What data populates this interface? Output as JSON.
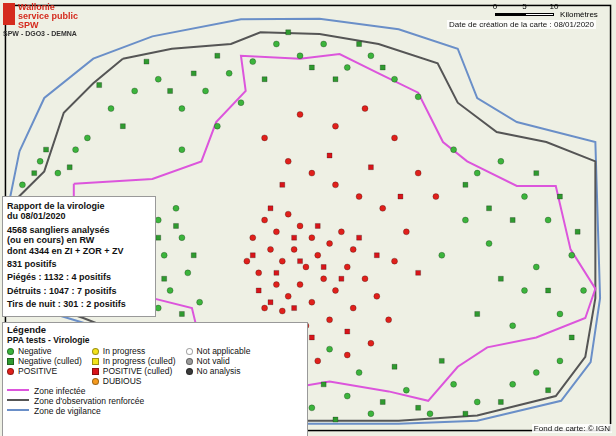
{
  "header": {
    "logo": [
      "Wallonie",
      "service public",
      "SPW"
    ],
    "department": "SPW - DGO3 - DEMNA",
    "date": "Date de création de la carte : 08/01/2020",
    "credit": "Fond de carte: © IGN"
  },
  "scale_bar": {
    "ticks": [
      0,
      5,
      10
    ],
    "unit": "Kilomètres"
  },
  "report": [
    [
      "Rapport de la virologie",
      "du 08/01/2020"
    ],
    [
      "4568 sangliers analysés",
      "(ou en cours) en RW",
      "dont 4344 en ZI + ZOR + ZV"
    ],
    [
      "831 positifs"
    ],
    [
      "Piégés : 1132 : 4 positifs"
    ],
    [
      "Détruits : 1047 : 7 positifs"
    ],
    [
      "Tirs de nuit : 301 : 2 positifs"
    ]
  ],
  "legend": {
    "title": "Légende",
    "subtitle": "PPA tests - Virologie"
  },
  "chart_data": {
    "type": "scatter",
    "xlim": [
      0,
      102.7
    ],
    "ylim": [
      0,
      72.7
    ],
    "grid": false,
    "tick_labels": false,
    "series": [
      {
        "name": "Negative",
        "color": "#3cb43c",
        "marker": "circle",
        "x": [
          26,
          27,
          28,
          30,
          31,
          26,
          29,
          33,
          3,
          6,
          9,
          12,
          30,
          34,
          38,
          42,
          46,
          50,
          54,
          58,
          62,
          66,
          70,
          36,
          40,
          26,
          22,
          18,
          14,
          30,
          52,
          58,
          62,
          68,
          72,
          76,
          80,
          86,
          90,
          94,
          60,
          55,
          76,
          80,
          84,
          88,
          92,
          96,
          98,
          94,
          88,
          82,
          78,
          74,
          86,
          90
        ],
        "values": [
          36,
          30,
          24,
          33,
          27,
          21,
          38,
          22,
          42,
          46,
          44,
          48,
          55,
          58,
          61,
          63,
          66,
          64,
          66,
          62,
          64,
          60,
          57,
          52,
          56,
          60,
          58,
          55,
          50,
          48,
          4,
          6,
          3,
          7,
          3,
          8,
          5,
          8,
          10,
          12,
          10,
          14,
          48,
          44,
          46,
          40,
          36,
          30,
          24,
          20,
          24,
          32,
          36,
          30,
          18,
          28
        ]
      },
      {
        "name": "Negative (culled)",
        "color": "#2f9a2f",
        "marker": "square",
        "x": [
          26,
          27,
          29,
          32,
          30,
          7,
          5,
          11,
          32,
          36,
          44,
          48,
          52,
          56,
          60,
          64,
          28,
          24,
          20,
          16,
          54,
          56,
          64,
          70,
          78,
          84,
          92,
          74,
          66,
          78,
          82,
          86,
          90,
          94,
          97,
          92,
          84,
          80,
          96
        ],
        "values": [
          33,
          26,
          35,
          30,
          20,
          48,
          44,
          45,
          61,
          64,
          60,
          68,
          62,
          60,
          66,
          62,
          58,
          63,
          52,
          59,
          8,
          2,
          5,
          4,
          3,
          5,
          7,
          12,
          11,
          42,
          38,
          36,
          44,
          40,
          34,
          24,
          26,
          20,
          16
        ]
      },
      {
        "name": "POSITIVE",
        "color": "#e0201b",
        "marker": "circle",
        "x": [
          44,
          46,
          48,
          50,
          52,
          45,
          47,
          49,
          51,
          53,
          55,
          43,
          46,
          48,
          50,
          52,
          54,
          56,
          58,
          57,
          59,
          61,
          42,
          41,
          44,
          47,
          51,
          55,
          59,
          63,
          65,
          62,
          58,
          53,
          66,
          68,
          64,
          60,
          56,
          52,
          48,
          44,
          50,
          56,
          61,
          66,
          70,
          73
        ],
        "values": [
          36,
          34,
          37,
          35,
          33,
          31,
          29,
          31,
          28,
          30,
          32,
          27,
          25,
          23,
          25,
          22,
          26,
          24,
          28,
          34,
          31,
          26,
          33,
          29,
          21,
          20.5,
          18,
          19,
          21,
          23,
          19,
          15,
          13,
          12,
          29,
          34,
          38,
          40,
          42,
          44,
          46,
          50,
          54,
          52,
          55,
          50,
          44,
          40
        ]
      },
      {
        "name": "In progress",
        "color": "#f2e21a",
        "marker": "circle",
        "x": [],
        "values": []
      },
      {
        "name": "In progress (culled)",
        "color": "#f2e21a",
        "marker": "square",
        "x": [],
        "values": []
      },
      {
        "name": "POSITIVE (culled)",
        "color": "#d8141a",
        "marker": "square",
        "x": [
          45,
          49,
          53,
          46,
          50,
          54,
          43,
          49,
          57,
          60,
          63,
          58,
          52,
          47,
          55,
          62,
          67,
          70,
          45,
          42
        ],
        "values": [
          38,
          33,
          35,
          27,
          29,
          28,
          24,
          21,
          26,
          33,
          30,
          17,
          16,
          42,
          47,
          45,
          40,
          27,
          22,
          30
        ]
      },
      {
        "name": "DUBIOUS",
        "color": "#f59a1e",
        "marker": "circle",
        "x": [],
        "values": []
      },
      {
        "name": "Not applicable",
        "color": "#ffffff",
        "marker": "circle",
        "x": [],
        "values": []
      },
      {
        "name": "Not valid",
        "color": "#9a9a9a",
        "marker": "circle",
        "x": [],
        "values": []
      },
      {
        "name": "No analysis",
        "color": "#3a3a3a",
        "marker": "circle",
        "x": [],
        "values": []
      },
      {
        "name": "Zone infectée",
        "type": "line",
        "line_style": "solid",
        "color": "#dc55dc",
        "x": [
          11.7,
          25,
          33.3,
          35.8,
          40.8,
          40,
          50,
          56.7,
          63.3,
          70,
          74.2,
          78.3,
          86.7,
          93.3,
          95.8,
          100,
          98.3,
          90,
          81.7,
          76.7,
          71.7,
          65,
          55,
          45,
          36.7,
          33.3,
          31.7,
          25,
          20,
          15.8,
          11.7,
          11.7
        ],
        "values": [
          42.2,
          43,
          46,
          52.7,
          58,
          64,
          63.5,
          64.3,
          61,
          57.7,
          49.3,
          46,
          41.8,
          41.8,
          31,
          24.3,
          19.3,
          16,
          14.3,
          11,
          5.2,
          6.8,
          8.5,
          6.8,
          9.3,
          14.3,
          21,
          22.7,
          26,
          29.3,
          31.7,
          42.2
        ]
      },
      {
        "name": "Zone d'observation renforcée",
        "type": "line",
        "line_style": "solid",
        "color": "#555555",
        "x": [
          20,
          28.3,
          38.3,
          43.3,
          53.3,
          63.3,
          73.3,
          76.7,
          83.3,
          91.7,
          100,
          100,
          98.3,
          93.3,
          80,
          66.7,
          50,
          38.3,
          33.3,
          30,
          21.7,
          13.3,
          3.3,
          1.7,
          6.7,
          10,
          15,
          20
        ],
        "values": [
          63.5,
          65.2,
          66,
          68,
          67.7,
          66,
          62.7,
          56,
          51,
          49.3,
          46,
          22.7,
          12.7,
          6,
          2.7,
          1.8,
          1.8,
          3.5,
          6,
          12.7,
          16,
          19.3,
          22.7,
          39.3,
          44.3,
          54.3,
          59.3,
          63.5
        ]
      },
      {
        "name": "Zone de vigilance",
        "type": "line",
        "line_style": "solid",
        "color": "#6a8fc8",
        "x": [
          2.5,
          6.7,
          15,
          25,
          40,
          53.3,
          66.7,
          76.7,
          80,
          86.7,
          100,
          100.8,
          99.2,
          94.2,
          80,
          66.7,
          50,
          37.5,
          32.5,
          29.2,
          21.7,
          13.3,
          2.5,
          0.8,
          2.5
        ],
        "values": [
          47.7,
          56.8,
          63.5,
          67.3,
          70.2,
          70.3,
          68.5,
          65.2,
          56.8,
          52.7,
          49.3,
          22.7,
          11.8,
          5.2,
          1.8,
          1.3,
          1.3,
          2.7,
          5.7,
          11.8,
          15,
          18.5,
          21.8,
          39.3,
          47.7
        ]
      }
    ]
  }
}
